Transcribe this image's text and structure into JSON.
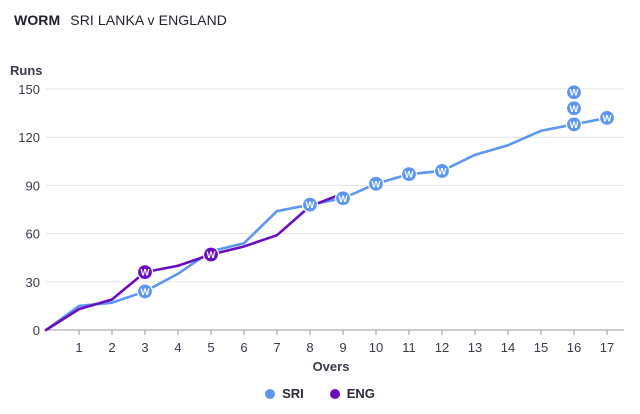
{
  "header": {
    "label": "WORM",
    "title": "SRI LANKA v ENGLAND"
  },
  "chart_data": {
    "type": "line",
    "title": "SRI LANKA v ENGLAND",
    "xlabel": "Overs",
    "ylabel": "Runs",
    "xlim": [
      0,
      17.5
    ],
    "ylim": [
      0,
      150
    ],
    "xticks": [
      1,
      2,
      3,
      4,
      5,
      6,
      7,
      8,
      9,
      10,
      11,
      12,
      13,
      14,
      15,
      16,
      17
    ],
    "yticks": [
      0,
      30,
      60,
      90,
      120,
      150
    ],
    "grid": "horizontal",
    "legend_position": "bottom",
    "series": [
      {
        "name": "SRI",
        "color": "#5b97f0",
        "x": [
          0,
          1,
          2,
          3,
          4,
          5,
          6,
          7,
          8,
          9,
          10,
          11,
          12,
          13,
          14,
          15,
          16,
          17
        ],
        "y": [
          0,
          15,
          17,
          24,
          35,
          49,
          54,
          74,
          78,
          82,
          91,
          97,
          99,
          109,
          115,
          124,
          128,
          132
        ],
        "wickets": [
          {
            "x": 3,
            "y": 24
          },
          {
            "x": 8,
            "y": 78
          },
          {
            "x": 9,
            "y": 82
          },
          {
            "x": 10,
            "y": 91
          },
          {
            "x": 11,
            "y": 97
          },
          {
            "x": 12,
            "y": 99
          },
          {
            "x": 16,
            "y": 128
          },
          {
            "x": 16,
            "y": 138
          },
          {
            "x": 16,
            "y": 148
          },
          {
            "x": 17,
            "y": 132
          }
        ]
      },
      {
        "name": "ENG",
        "color": "#6a0dc2",
        "x": [
          0,
          1,
          2,
          3,
          4,
          5,
          6,
          7,
          8,
          9
        ],
        "y": [
          0,
          13,
          19,
          36,
          40,
          47,
          52,
          59,
          77,
          85
        ],
        "wickets": [
          {
            "x": 3,
            "y": 36
          },
          {
            "x": 5,
            "y": 47
          }
        ]
      }
    ],
    "wicket_marker": "W"
  }
}
